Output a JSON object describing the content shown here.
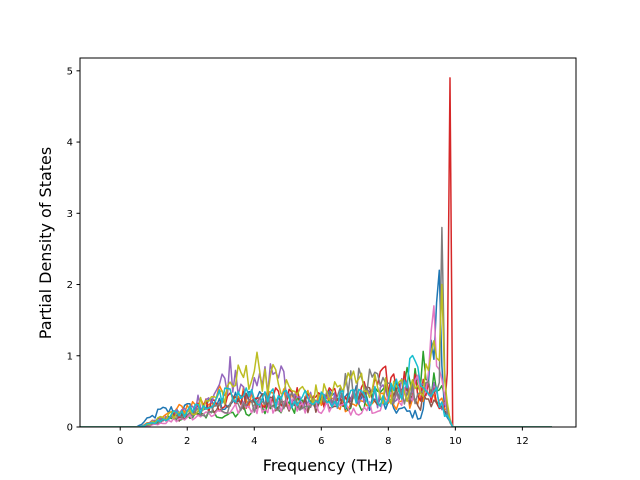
{
  "chart_data": {
    "type": "line",
    "title": "",
    "xlabel": "Frequency (THz)",
    "ylabel": "Partial Density of States",
    "xlim": [
      -1.2,
      13.6
    ],
    "ylim": [
      0,
      5.18
    ],
    "xticks": [
      0,
      2,
      4,
      6,
      8,
      10,
      12
    ],
    "xtick_labels": [
      "0",
      "2",
      "4",
      "6",
      "8",
      "10",
      "12"
    ],
    "yticks": [
      0,
      1,
      2,
      3,
      4,
      5
    ],
    "ytick_labels": [
      "0",
      "1",
      "2",
      "3",
      "4",
      "5"
    ],
    "grid": false,
    "legend": "none",
    "series_count_note_visible": false,
    "x_sampling": {
      "start": -1.2,
      "end": 12.9,
      "step": 0.08
    },
    "series": [
      {
        "color": "#1f77b4",
        "envelope": [
          [
            -1.2,
            0
          ],
          [
            0.5,
            0
          ],
          [
            1.2,
            0.3
          ],
          [
            2,
            0.35
          ],
          [
            3,
            0.45
          ],
          [
            4,
            0.55
          ],
          [
            5,
            0.5
          ],
          [
            6,
            0.55
          ],
          [
            7,
            0.6
          ],
          [
            8,
            0.4
          ],
          [
            9,
            0.2
          ],
          [
            9.5,
            2.2
          ],
          [
            9.7,
            0.3
          ],
          [
            9.9,
            0
          ],
          [
            12.9,
            0
          ]
        ]
      },
      {
        "color": "#ff7f0e",
        "envelope": [
          [
            -1.2,
            0
          ],
          [
            0.6,
            0
          ],
          [
            1.3,
            0.2
          ],
          [
            2,
            0.4
          ],
          [
            3,
            0.6
          ],
          [
            4,
            0.6
          ],
          [
            5,
            0.55
          ],
          [
            6,
            0.5
          ],
          [
            7,
            0.45
          ],
          [
            8,
            0.5
          ],
          [
            9,
            0.6
          ],
          [
            9.7,
            0.4
          ],
          [
            9.9,
            0
          ],
          [
            12.9,
            0
          ]
        ]
      },
      {
        "color": "#2ca02c",
        "envelope": [
          [
            -1.2,
            0
          ],
          [
            0.6,
            0
          ],
          [
            1.4,
            0.15
          ],
          [
            2,
            0.2
          ],
          [
            3,
            0.25
          ],
          [
            4,
            0.35
          ],
          [
            5,
            0.4
          ],
          [
            6,
            0.45
          ],
          [
            7,
            0.5
          ],
          [
            8,
            0.6
          ],
          [
            9,
            1.1
          ],
          [
            9.7,
            0.5
          ],
          [
            9.9,
            0
          ],
          [
            12.9,
            0
          ]
        ]
      },
      {
        "color": "#d62728",
        "envelope": [
          [
            -1.2,
            0
          ],
          [
            0.6,
            0
          ],
          [
            1.4,
            0.2
          ],
          [
            2,
            0.3
          ],
          [
            3,
            0.5
          ],
          [
            4,
            0.6
          ],
          [
            5,
            0.55
          ],
          [
            6,
            0.6
          ],
          [
            7,
            0.55
          ],
          [
            8,
            0.9
          ],
          [
            9,
            0.8
          ],
          [
            9.6,
            0.4
          ],
          [
            9.75,
            0.6
          ],
          [
            9.83,
            4.9
          ],
          [
            9.9,
            0
          ],
          [
            12.9,
            0
          ]
        ]
      },
      {
        "color": "#9467bd",
        "envelope": [
          [
            -1.2,
            0
          ],
          [
            0.6,
            0
          ],
          [
            1.4,
            0.2
          ],
          [
            2,
            0.3
          ],
          [
            3,
            0.8
          ],
          [
            3.3,
            1.1
          ],
          [
            4,
            0.7
          ],
          [
            4.7,
            1.15
          ],
          [
            5,
            0.6
          ],
          [
            6,
            0.5
          ],
          [
            7,
            0.55
          ],
          [
            8,
            0.6
          ],
          [
            9,
            0.9
          ],
          [
            9.7,
            0.4
          ],
          [
            9.9,
            0
          ],
          [
            12.9,
            0
          ]
        ]
      },
      {
        "color": "#8c564b",
        "envelope": [
          [
            -1.2,
            0
          ],
          [
            0.6,
            0
          ],
          [
            1.4,
            0.15
          ],
          [
            2,
            0.2
          ],
          [
            3,
            0.4
          ],
          [
            4,
            0.5
          ],
          [
            5,
            0.45
          ],
          [
            6,
            0.4
          ],
          [
            7,
            0.5
          ],
          [
            8,
            0.7
          ],
          [
            9,
            0.5
          ],
          [
            9.7,
            0.3
          ],
          [
            9.9,
            0
          ],
          [
            12.9,
            0
          ]
        ]
      },
      {
        "color": "#e377c2",
        "envelope": [
          [
            -1.2,
            0
          ],
          [
            0.6,
            0
          ],
          [
            1.4,
            0.1
          ],
          [
            2,
            0.2
          ],
          [
            3,
            0.3
          ],
          [
            4,
            0.4
          ],
          [
            5,
            0.45
          ],
          [
            6,
            0.4
          ],
          [
            7,
            0.35
          ],
          [
            8,
            0.5
          ],
          [
            9,
            0.8
          ],
          [
            9.4,
            1.7
          ],
          [
            9.7,
            0.4
          ],
          [
            9.9,
            0
          ],
          [
            12.9,
            0
          ]
        ]
      },
      {
        "color": "#7f7f7f",
        "envelope": [
          [
            -1.2,
            0
          ],
          [
            0.6,
            0
          ],
          [
            1.4,
            0.15
          ],
          [
            2,
            0.25
          ],
          [
            3,
            0.35
          ],
          [
            4,
            0.45
          ],
          [
            5,
            0.5
          ],
          [
            6,
            0.55
          ],
          [
            7,
            0.9
          ],
          [
            8,
            0.7
          ],
          [
            9,
            0.6
          ],
          [
            9.55,
            0.8
          ],
          [
            9.6,
            2.8
          ],
          [
            9.7,
            0.3
          ],
          [
            9.9,
            0
          ],
          [
            12.9,
            0
          ]
        ]
      },
      {
        "color": "#bcbd22",
        "envelope": [
          [
            -1.2,
            0
          ],
          [
            0.6,
            0
          ],
          [
            1.4,
            0.2
          ],
          [
            2,
            0.3
          ],
          [
            3,
            0.6
          ],
          [
            4,
            1.2
          ],
          [
            5,
            0.7
          ],
          [
            6,
            0.6
          ],
          [
            7,
            0.9
          ],
          [
            8,
            0.7
          ],
          [
            9,
            0.7
          ],
          [
            9.6,
            2.0
          ],
          [
            9.75,
            0.4
          ],
          [
            9.9,
            0
          ],
          [
            12.9,
            0
          ]
        ]
      },
      {
        "color": "#17becf",
        "envelope": [
          [
            -1.2,
            0
          ],
          [
            0.6,
            0
          ],
          [
            1.4,
            0.2
          ],
          [
            2,
            0.3
          ],
          [
            3,
            0.55
          ],
          [
            4,
            0.6
          ],
          [
            5,
            0.55
          ],
          [
            6,
            0.5
          ],
          [
            7,
            0.55
          ],
          [
            8,
            0.6
          ],
          [
            9,
            1.2
          ],
          [
            9.7,
            0.3
          ],
          [
            9.9,
            0
          ],
          [
            12.9,
            0
          ]
        ]
      }
    ]
  }
}
